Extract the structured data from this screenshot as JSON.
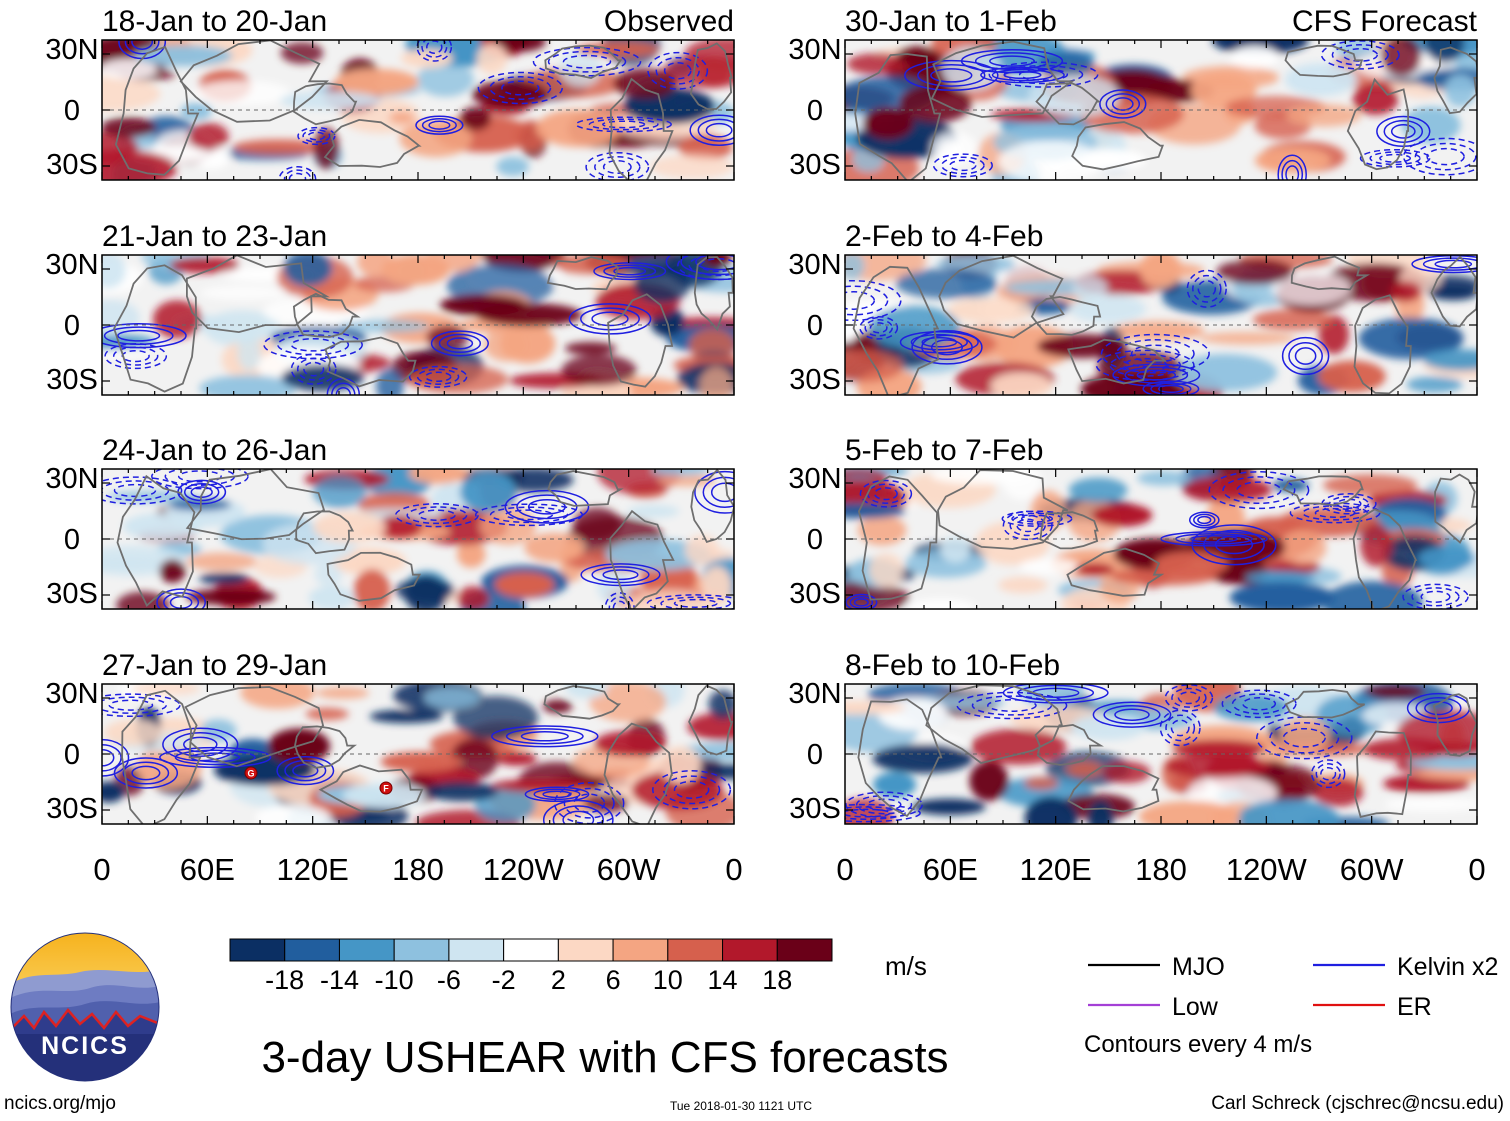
{
  "header": {
    "left_label": "Observed",
    "right_label": "CFS Forecast"
  },
  "chart_data": {
    "type": "heatmap",
    "title": "3-day USHEAR with CFS forecasts",
    "variable": "USHEAR",
    "units": "m/s",
    "lat_ticks": [
      "30N",
      "0",
      "30S"
    ],
    "lon_ticks": [
      "0",
      "60E",
      "120E",
      "180",
      "120W",
      "60W",
      "0"
    ],
    "observed_panels": [
      "18-Jan to 20-Jan",
      "21-Jan to 23-Jan",
      "24-Jan to 26-Jan",
      "27-Jan to 29-Jan"
    ],
    "forecast_panels": [
      "30-Jan to 1-Feb",
      "2-Feb to 4-Feb",
      "5-Feb to 7-Feb",
      "8-Feb to 10-Feb"
    ],
    "colorbar": {
      "labels": [
        "-18",
        "-14",
        "-10",
        "-6",
        "-2",
        "2",
        "6",
        "10",
        "14",
        "18"
      ],
      "colors": [
        "#0b2f63",
        "#215e9e",
        "#4596c6",
        "#8ec1df",
        "#cfe5f1",
        "#ffffff",
        "#fcd8c4",
        "#f4a582",
        "#d6604d",
        "#b2182b",
        "#6a0018"
      ]
    },
    "legend": [
      {
        "label": "MJO",
        "color": "#000000"
      },
      {
        "label": "Kelvin x2",
        "color": "#1f1fe0"
      },
      {
        "label": "Low",
        "color": "#a43fd6"
      },
      {
        "label": "ER",
        "color": "#e01010"
      }
    ],
    "contour_note": "Contours every 4 m/s",
    "storm_markers": [
      "G",
      "F"
    ]
  },
  "footer": {
    "url": "ncics.org/mjo",
    "timestamp": "Tue 2018-01-30 1121 UTC",
    "credit": "Carl Schreck (cjschrec@ncsu.edu)",
    "logo_text": "NCICS"
  }
}
